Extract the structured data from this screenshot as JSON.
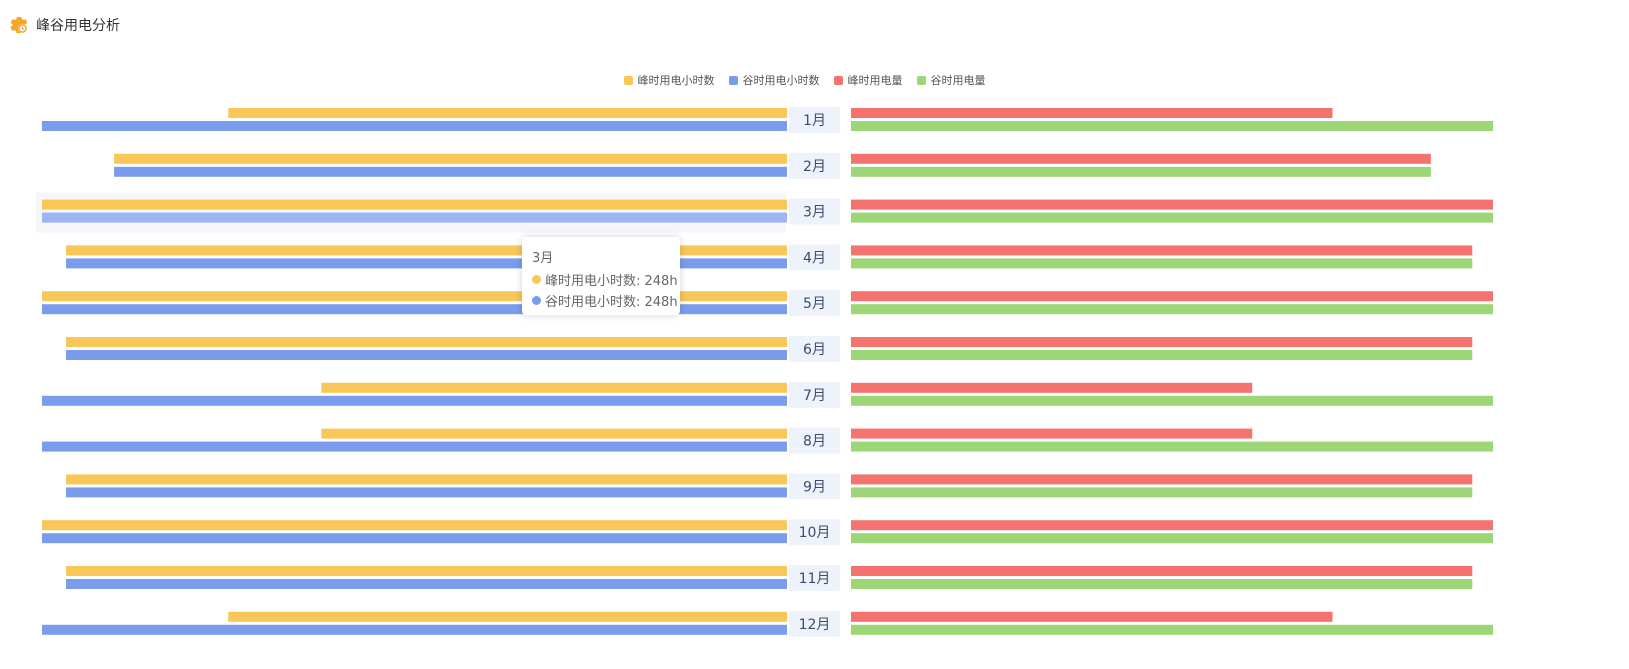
{
  "header": {
    "title": "峰谷用电分析",
    "icon": "gear-clock-icon",
    "icon_color": "#f5a623"
  },
  "colors": {
    "peak_hours": "#f8c758",
    "valley_hours": "#7b9ced",
    "peak_power": "#f4736f",
    "valley_power": "#9cd676",
    "label_bg": "#eef3fb",
    "highlight_bg": "#f4f6fa",
    "highlight_valley": "#9db5f3"
  },
  "tooltip": {
    "title": "3月",
    "rows": [
      {
        "text": "峰时用电小时数: 248h",
        "color": "#f8c758"
      },
      {
        "text": "谷时用电小时数: 248h",
        "color": "#7b9ced"
      }
    ]
  },
  "chart_data": {
    "type": "bar",
    "orientation": "horizontal-mirrored",
    "highlighted_category": "3月",
    "legend": [
      {
        "name": "峰时用电小时数",
        "color": "#f8c758"
      },
      {
        "name": "谷时用电小时数",
        "color": "#7b9ced"
      },
      {
        "name": "峰时用电量",
        "color": "#f4736f"
      },
      {
        "name": "谷时用电量",
        "color": "#9cd676"
      }
    ],
    "categories": [
      "1月",
      "2月",
      "3月",
      "4月",
      "5月",
      "6月",
      "7月",
      "8月",
      "9月",
      "10月",
      "11月",
      "12月"
    ],
    "left_max": 248,
    "right_max": 248,
    "series": [
      {
        "name": "峰时用电小时数",
        "side": "left",
        "values": [
          186,
          224,
          248,
          240,
          248,
          240,
          155,
          155,
          240,
          248,
          240,
          186
        ]
      },
      {
        "name": "谷时用电小时数",
        "side": "left",
        "values": [
          248,
          224,
          248,
          240,
          248,
          240,
          248,
          248,
          240,
          248,
          240,
          248
        ]
      },
      {
        "name": "峰时用电量",
        "side": "right",
        "values": [
          186,
          224,
          248,
          240,
          248,
          240,
          155,
          155,
          240,
          248,
          240,
          186
        ]
      },
      {
        "name": "谷时用电量",
        "side": "right",
        "values": [
          248,
          224,
          248,
          240,
          248,
          240,
          248,
          248,
          240,
          248,
          240,
          248
        ]
      }
    ]
  }
}
